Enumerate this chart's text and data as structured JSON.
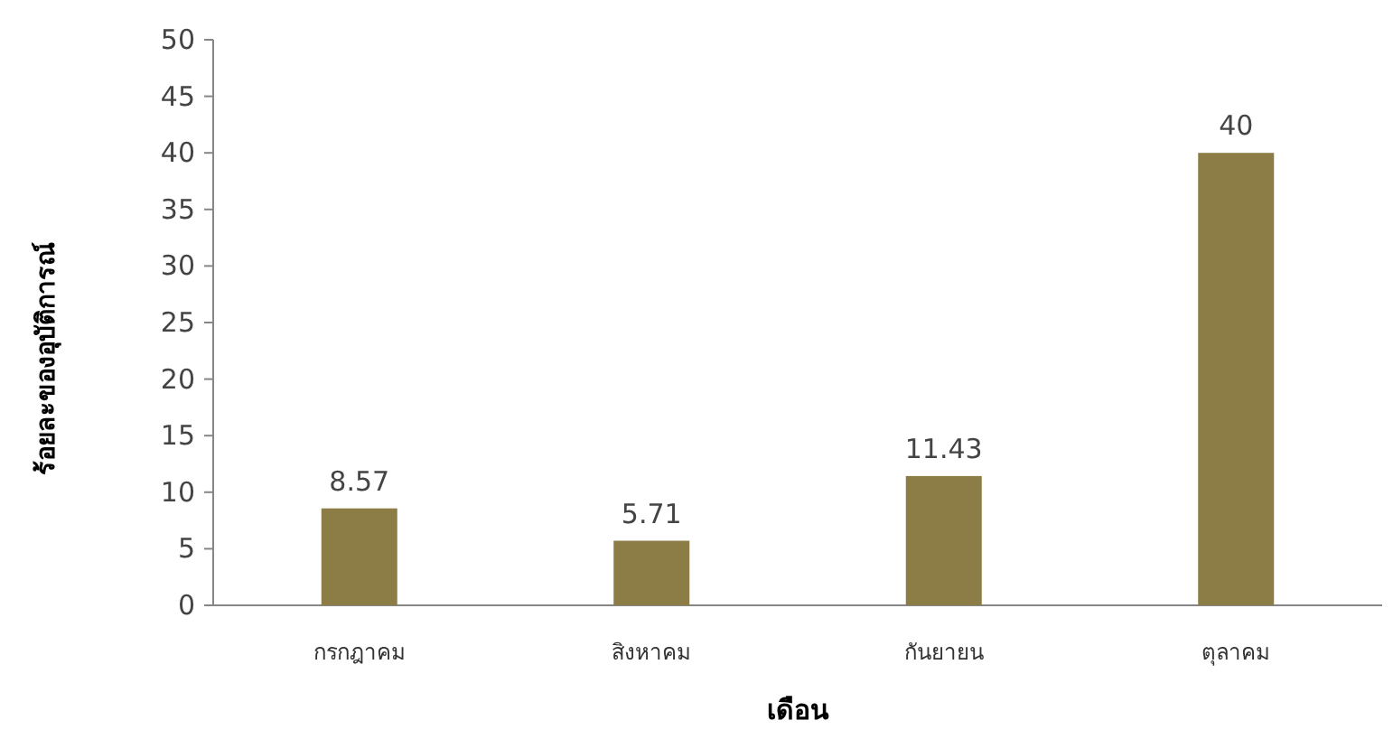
{
  "chart_data": {
    "type": "bar",
    "xlabel": "เดือน",
    "ylabel": "ร้อยละของอุบัติการณ์",
    "categories": [
      "กรกฎาคม",
      "สิงหาคม",
      "กันยายน",
      "ตุลาคม"
    ],
    "values": [
      8.57,
      5.71,
      11.43,
      40
    ],
    "color": "#8b7d45",
    "ylim": [
      0,
      50
    ],
    "yticks": [
      0,
      5,
      10,
      15,
      20,
      25,
      30,
      35,
      40,
      45,
      50
    ],
    "data_labels": true,
    "grid": false
  }
}
